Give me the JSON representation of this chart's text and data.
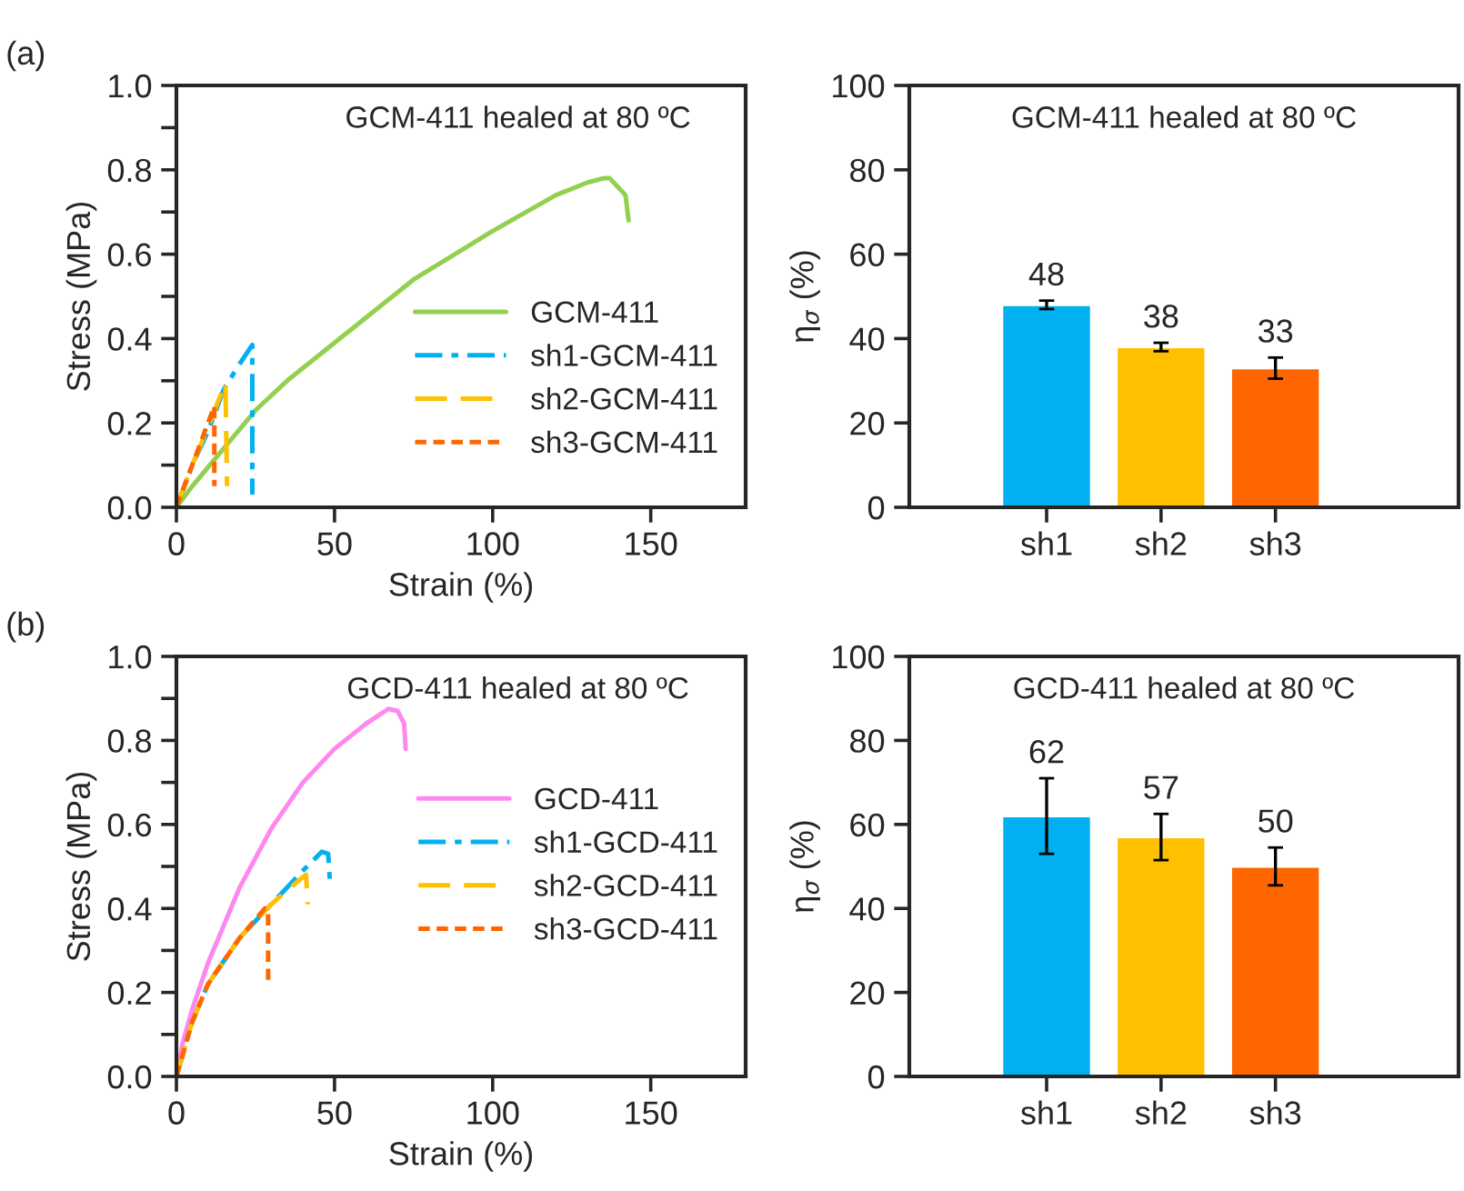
{
  "chart_data": [
    {
      "type": "line",
      "title": "GCM-411 healed at 80 ºC",
      "xlabel": "Strain (%)",
      "ylabel": "Stress (MPa)",
      "annotations": [
        "(a)"
      ],
      "xlim": [
        0,
        180
      ],
      "xticks": [
        0,
        50,
        100,
        150
      ],
      "ylim": [
        0,
        1.0
      ],
      "yticks": [
        {
          "value": 0,
          "label": "0.0"
        },
        {
          "value": 0.1,
          "label": null
        },
        {
          "value": 0.2,
          "label": "0.2"
        },
        {
          "value": 0.3,
          "label": null
        },
        {
          "value": 0.4,
          "label": "0.4"
        },
        {
          "value": 0.5,
          "label": null
        },
        {
          "value": 0.6,
          "label": "0.6"
        },
        {
          "value": 0.7,
          "label": null
        },
        {
          "value": 0.8,
          "label": "0.8"
        },
        {
          "value": 0.9,
          "label": null
        },
        {
          "value": 1.0,
          "label": "1.0"
        }
      ],
      "legend": "lower right",
      "series": [
        {
          "name": "GCM-411",
          "color": "#92d050",
          "line_style": "solid",
          "x": [
            0,
            5,
            15,
            25,
            35,
            50,
            75,
            100,
            120,
            130,
            135,
            137,
            142,
            143
          ],
          "values": [
            0,
            0.05,
            0.14,
            0.23,
            0.3,
            0.39,
            0.54,
            0.655,
            0.74,
            0.77,
            0.78,
            0.78,
            0.74,
            0.68
          ]
        },
        {
          "name": "sh1-GCM-411",
          "color": "#00b0f0",
          "line_style": "dashdot",
          "x": [
            0,
            5,
            10,
            15,
            20,
            24,
            24
          ],
          "values": [
            0,
            0.1,
            0.18,
            0.28,
            0.34,
            0.385,
            0.03
          ]
        },
        {
          "name": "sh2-GCM-411",
          "color": "#ffc000",
          "line_style": "dashed",
          "x": [
            0,
            5,
            10,
            15.5,
            16
          ],
          "values": [
            0,
            0.1,
            0.19,
            0.295,
            0.05
          ]
        },
        {
          "name": "sh3-GCM-411",
          "color": "#ff6600",
          "line_style": "dotted",
          "x": [
            0,
            5,
            12,
            12
          ],
          "values": [
            0,
            0.1,
            0.24,
            0.05
          ]
        }
      ]
    },
    {
      "type": "bar",
      "title": "GCM-411 healed at 80 ºC",
      "ylabel": "η$_{σ}$ (%)",
      "categories": [
        "sh1",
        "sh2",
        "sh3"
      ],
      "values": [
        48,
        38,
        33
      ],
      "errors": [
        1,
        1,
        2.5
      ],
      "colors": [
        "#00b0f0",
        "#ffc000",
        "#ff6600"
      ],
      "data_labels": true,
      "ylim": [
        0,
        100
      ],
      "yticks": [
        0,
        20,
        40,
        60,
        80,
        100
      ]
    },
    {
      "type": "line",
      "title": "GCD-411 healed at 80 ºC",
      "xlabel": "Strain (%)",
      "ylabel": "Stress (MPa)",
      "annotations": [
        "(b)"
      ],
      "xlim": [
        0,
        180
      ],
      "xticks": [
        0,
        50,
        100,
        150
      ],
      "ylim": [
        0,
        1.0
      ],
      "yticks": [
        {
          "value": 0,
          "label": "0.0"
        },
        {
          "value": 0.1,
          "label": null
        },
        {
          "value": 0.2,
          "label": "0.2"
        },
        {
          "value": 0.3,
          "label": null
        },
        {
          "value": 0.4,
          "label": "0.4"
        },
        {
          "value": 0.5,
          "label": null
        },
        {
          "value": 0.6,
          "label": "0.6"
        },
        {
          "value": 0.7,
          "label": null
        },
        {
          "value": 0.8,
          "label": "0.8"
        },
        {
          "value": 0.9,
          "label": null
        },
        {
          "value": 1.0,
          "label": "1.0"
        }
      ],
      "legend": "right",
      "series": [
        {
          "name": "GCD-411",
          "color": "#ff88ee",
          "line_style": "solid",
          "x": [
            0,
            2,
            5,
            10,
            20,
            30,
            40,
            50,
            60,
            67,
            70,
            72,
            72.5
          ],
          "values": [
            0,
            0.08,
            0.16,
            0.27,
            0.45,
            0.59,
            0.7,
            0.78,
            0.84,
            0.875,
            0.87,
            0.84,
            0.78
          ]
        },
        {
          "name": "sh1-GCD-411",
          "color": "#00b0f0",
          "line_style": "dashdot",
          "x": [
            0,
            5,
            10,
            20,
            30,
            40,
            46,
            48,
            48.5
          ],
          "values": [
            0,
            0.13,
            0.22,
            0.33,
            0.41,
            0.49,
            0.535,
            0.53,
            0.47
          ]
        },
        {
          "name": "sh2-GCD-411",
          "color": "#ffc000",
          "line_style": "dashed",
          "x": [
            0,
            5,
            10,
            20,
            30,
            40,
            41,
            41.5
          ],
          "values": [
            0,
            0.13,
            0.22,
            0.33,
            0.41,
            0.475,
            0.48,
            0.41
          ]
        },
        {
          "name": "sh3-GCD-411",
          "color": "#ff6600",
          "line_style": "dotted",
          "x": [
            0,
            5,
            10,
            20,
            28,
            29,
            29
          ],
          "values": [
            0,
            0.13,
            0.22,
            0.33,
            0.4,
            0.395,
            0.23
          ]
        }
      ]
    },
    {
      "type": "bar",
      "title": "GCD-411 healed at 80 ºC",
      "ylabel": "η$_{σ}$ (%)",
      "categories": [
        "sh1",
        "sh2",
        "sh3"
      ],
      "values": [
        62,
        57,
        50
      ],
      "errors": [
        9,
        5.5,
        4.5
      ],
      "colors": [
        "#00b0f0",
        "#ffc000",
        "#ff6600"
      ],
      "data_labels": true,
      "ylim": [
        0,
        100
      ],
      "yticks": [
        0,
        20,
        40,
        60,
        80,
        100
      ]
    }
  ]
}
